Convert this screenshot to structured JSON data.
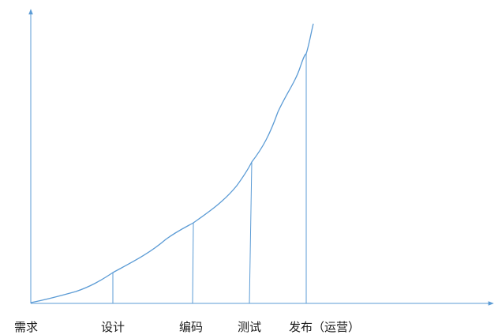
{
  "stages": [
    {
      "label": "需求"
    },
    {
      "label": "设计"
    },
    {
      "label": "编码"
    },
    {
      "label": "测试"
    },
    {
      "label": "发布（运营）"
    }
  ],
  "colors": {
    "line": "#5b9bd5",
    "axis": "#5b9bd5",
    "text": "#1a1a1a",
    "background": "#ffffff"
  }
}
